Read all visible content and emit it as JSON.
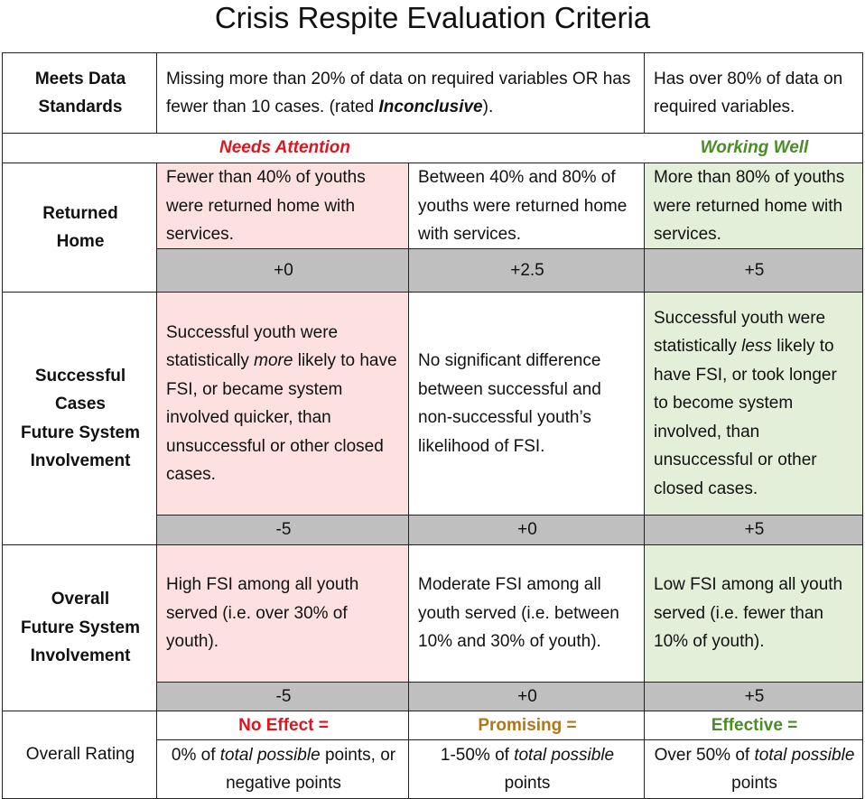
{
  "title": "Crisis Respite Evaluation Criteria",
  "data_standards": {
    "label": [
      "Meets Data",
      "Standards"
    ],
    "missing": [
      "Missing more than 20% of data on required variables OR has fewer than 10 cases. (rated ",
      "Inconclusive",
      ")."
    ],
    "has": "Has over 80% of data on required variables."
  },
  "needs_attention": "Needs Attention",
  "working_well": "Working Well",
  "criteria": [
    {
      "label": [
        "Returned",
        "Home"
      ],
      "cells": [
        [
          "Fewer than 40% of youths were returned home with services."
        ],
        [
          "Between 40% and 80% of youths were returned home with services."
        ],
        [
          "More than 80% of youths were returned home with services."
        ]
      ],
      "points": [
        "+0",
        "+2.5",
        "+5"
      ]
    },
    {
      "label": [
        "Successful",
        "Cases",
        "Future System",
        "Involvement"
      ],
      "cells": [
        [
          "Successful youth were statistically ",
          "more",
          " likely to have FSI, or became system involved quicker, than unsuccessful or other closed cases."
        ],
        [
          "No significant difference between successful and non-successful youth’s likelihood of FSI."
        ],
        [
          "Successful youth were statistically ",
          "less",
          " likely to have FSI, or took longer to become system involved, than unsuccessful or other closed cases."
        ]
      ],
      "points": [
        "-5",
        "+0",
        "+5"
      ]
    },
    {
      "label": [
        "Overall",
        "Future System",
        "Involvement"
      ],
      "cells": [
        [
          "High FSI among all youth served (i.e. over 30% of youth)."
        ],
        [
          "Moderate FSI among all youth served (i.e. between 10% and 30% of youth)."
        ],
        [
          "Low FSI among all youth served (i.e. fewer than 10% of youth)."
        ]
      ],
      "points": [
        "-5",
        "+0",
        "+5"
      ]
    }
  ],
  "overall_rating": {
    "label": "Overall Rating",
    "ratings": [
      {
        "name": "No Effect =",
        "description": [
          "0% of ",
          "total possible",
          " points, or negative points"
        ]
      },
      {
        "name": "Promising =",
        "description": [
          "1-50% of ",
          "total possible",
          " points"
        ]
      },
      {
        "name": "Effective =",
        "description": [
          "Over 50% of ",
          "total possible",
          " points"
        ]
      }
    ]
  }
}
